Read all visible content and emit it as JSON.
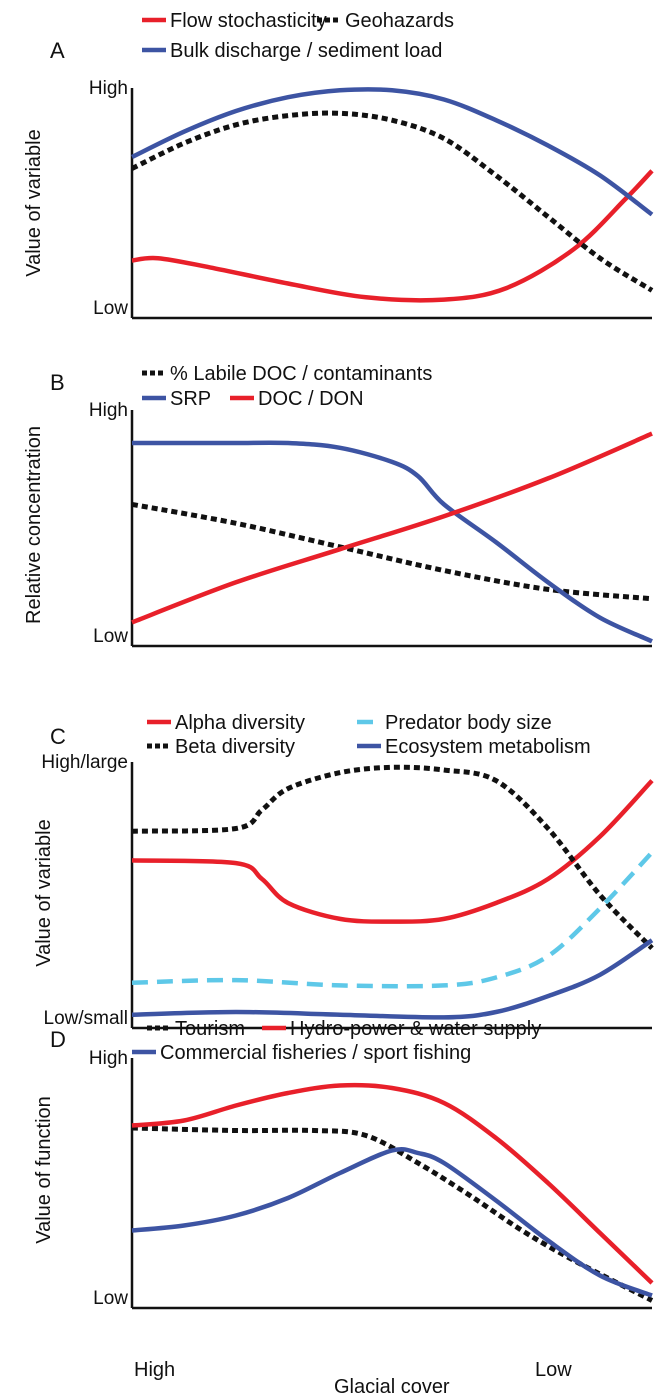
{
  "colors": {
    "red": "#e8202a",
    "blue": "#3d54a3",
    "black": "#111111",
    "cyan": "#5ec8e8"
  },
  "x_axis": {
    "label": "Glacial cover",
    "tick_left": "High",
    "tick_right": "Low"
  },
  "chart_data": [
    {
      "panel": "A",
      "type": "line",
      "ylabel": "Value of variable",
      "ytick_high": "High",
      "ytick_low": "Low",
      "x_direction": "glacial cover decreasing left to right",
      "ylim": [
        0,
        1
      ],
      "series": [
        {
          "name": "Flow stochasticity",
          "color": "red",
          "style": "solid",
          "x": [
            0,
            0.05,
            0.15,
            0.3,
            0.45,
            0.6,
            0.72,
            0.85,
            0.95,
            1.0
          ],
          "y": [
            0.25,
            0.26,
            0.22,
            0.15,
            0.09,
            0.08,
            0.13,
            0.3,
            0.52,
            0.64
          ]
        },
        {
          "name": "Geohazards",
          "color": "black",
          "style": "dotted",
          "x": [
            0,
            0.1,
            0.2,
            0.3,
            0.4,
            0.5,
            0.6,
            0.7,
            0.8,
            0.9,
            1.0
          ],
          "y": [
            0.65,
            0.76,
            0.84,
            0.88,
            0.89,
            0.86,
            0.78,
            0.62,
            0.44,
            0.26,
            0.12
          ]
        },
        {
          "name": "Bulk discharge / sediment load",
          "color": "blue",
          "style": "solid",
          "x": [
            0,
            0.1,
            0.2,
            0.3,
            0.4,
            0.5,
            0.6,
            0.7,
            0.8,
            0.9,
            1.0
          ],
          "y": [
            0.7,
            0.81,
            0.9,
            0.96,
            0.99,
            0.99,
            0.95,
            0.86,
            0.75,
            0.62,
            0.45
          ]
        }
      ]
    },
    {
      "panel": "B",
      "type": "line",
      "ylabel": "Relative concentration",
      "ytick_high": "High",
      "ytick_low": "Low",
      "ylim": [
        0,
        1
      ],
      "series": [
        {
          "name": "% Labile DOC / contaminants",
          "color": "black",
          "style": "dotted",
          "x": [
            0,
            0.2,
            0.4,
            0.6,
            0.8,
            1.0
          ],
          "y": [
            0.6,
            0.52,
            0.42,
            0.32,
            0.24,
            0.2
          ]
        },
        {
          "name": "SRP",
          "color": "blue",
          "style": "solid",
          "x": [
            0,
            0.1,
            0.2,
            0.3,
            0.4,
            0.5,
            0.55,
            0.6,
            0.7,
            0.8,
            0.9,
            1.0
          ],
          "y": [
            0.86,
            0.86,
            0.86,
            0.86,
            0.84,
            0.78,
            0.72,
            0.6,
            0.44,
            0.27,
            0.12,
            0.02
          ]
        },
        {
          "name": "DOC / DON",
          "color": "red",
          "style": "solid",
          "x": [
            0,
            0.2,
            0.4,
            0.6,
            0.8,
            1.0
          ],
          "y": [
            0.1,
            0.27,
            0.41,
            0.55,
            0.71,
            0.9
          ]
        }
      ]
    },
    {
      "panel": "C",
      "type": "line",
      "ylabel": "Value of variable",
      "ytick_high": "High/large",
      "ytick_low": "Low/small",
      "ylim": [
        0,
        1
      ],
      "series": [
        {
          "name": "Alpha diversity",
          "color": "red",
          "style": "solid",
          "x": [
            0,
            0.2,
            0.25,
            0.3,
            0.4,
            0.5,
            0.6,
            0.7,
            0.8,
            0.9,
            1.0
          ],
          "y": [
            0.63,
            0.62,
            0.56,
            0.47,
            0.41,
            0.4,
            0.41,
            0.47,
            0.56,
            0.72,
            0.93
          ]
        },
        {
          "name": "Beta diversity",
          "color": "black",
          "style": "dotted",
          "x": [
            0,
            0.2,
            0.25,
            0.3,
            0.4,
            0.5,
            0.6,
            0.7,
            0.8,
            0.9,
            1.0
          ],
          "y": [
            0.74,
            0.75,
            0.82,
            0.9,
            0.96,
            0.98,
            0.97,
            0.93,
            0.75,
            0.5,
            0.3
          ]
        },
        {
          "name": "Predator body size",
          "color": "cyan",
          "style": "dashed",
          "x": [
            0,
            0.2,
            0.4,
            0.6,
            0.7,
            0.8,
            0.9,
            1.0
          ],
          "y": [
            0.17,
            0.18,
            0.16,
            0.16,
            0.19,
            0.27,
            0.45,
            0.66
          ]
        },
        {
          "name": "Ecosystem metabolism",
          "color": "blue",
          "style": "solid",
          "x": [
            0,
            0.2,
            0.4,
            0.6,
            0.7,
            0.8,
            0.9,
            1.0
          ],
          "y": [
            0.05,
            0.06,
            0.05,
            0.04,
            0.06,
            0.12,
            0.2,
            0.33
          ]
        }
      ]
    },
    {
      "panel": "D",
      "type": "line",
      "ylabel": "Value of function",
      "ytick_high": "High",
      "ytick_low": "Low",
      "ylim": [
        0,
        1
      ],
      "series": [
        {
          "name": "Tourism",
          "color": "black",
          "style": "dotted",
          "x": [
            0,
            0.2,
            0.35,
            0.45,
            0.55,
            0.65,
            0.75,
            0.85,
            1.0
          ],
          "y": [
            0.72,
            0.71,
            0.71,
            0.69,
            0.58,
            0.45,
            0.31,
            0.19,
            0.03
          ]
        },
        {
          "name": "Hydro-power & water supply",
          "color": "red",
          "style": "solid",
          "x": [
            0,
            0.1,
            0.2,
            0.3,
            0.4,
            0.5,
            0.6,
            0.7,
            0.8,
            0.9,
            1.0
          ],
          "y": [
            0.73,
            0.75,
            0.81,
            0.86,
            0.89,
            0.88,
            0.82,
            0.68,
            0.5,
            0.3,
            0.1
          ]
        },
        {
          "name": "Commercial fisheries / sport fishing",
          "color": "blue",
          "style": "solid",
          "x": [
            0,
            0.1,
            0.2,
            0.3,
            0.4,
            0.5,
            0.55,
            0.6,
            0.7,
            0.8,
            0.9,
            1.0
          ],
          "y": [
            0.31,
            0.33,
            0.37,
            0.44,
            0.54,
            0.63,
            0.62,
            0.58,
            0.43,
            0.27,
            0.13,
            0.05
          ]
        }
      ]
    }
  ],
  "legends": [
    {
      "panel": "A",
      "rows": [
        [
          "Flow stochasticity",
          "Geohazards"
        ],
        [
          "Bulk discharge / sediment load"
        ]
      ]
    },
    {
      "panel": "B",
      "rows": [
        [
          "% Labile DOC / contaminants"
        ],
        [
          "SRP",
          "DOC / DON"
        ]
      ]
    },
    {
      "panel": "C",
      "rows": [
        [
          "Alpha diversity",
          "Predator body size"
        ],
        [
          "Beta diversity",
          "Ecosystem metabolism"
        ]
      ]
    },
    {
      "panel": "D",
      "rows": [
        [
          "Tourism",
          "Hydro-power & water supply"
        ],
        [
          "Commercial fisheries / sport fishing"
        ]
      ]
    }
  ]
}
